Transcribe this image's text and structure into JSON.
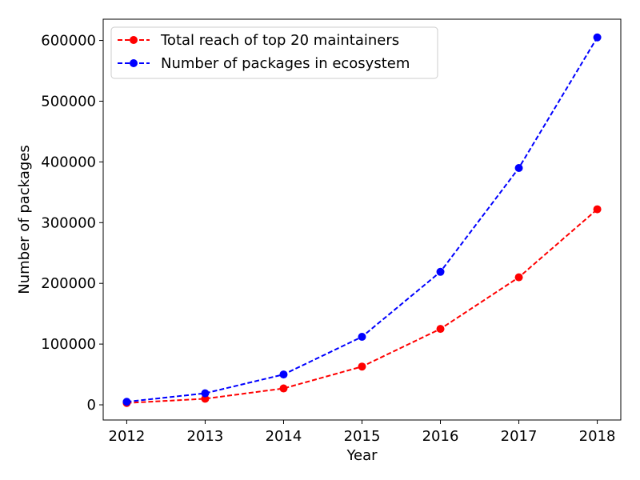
{
  "chart_data": {
    "type": "line",
    "xlabel": "Year",
    "ylabel": "Number of packages",
    "x": [
      2012,
      2013,
      2014,
      2015,
      2016,
      2017,
      2018
    ],
    "xticks": [
      "2012",
      "2013",
      "2014",
      "2015",
      "2016",
      "2017",
      "2018"
    ],
    "yticks": [
      "0",
      "100000",
      "200000",
      "300000",
      "400000",
      "500000",
      "600000"
    ],
    "xlim": [
      2011.7,
      2018.3
    ],
    "ylim": [
      -25000,
      635000
    ],
    "grid": false,
    "legend_position": "top-left",
    "series": [
      {
        "name": "Total reach of top 20 maintainers",
        "color": "#ff0000",
        "linestyle": "dashed",
        "marker": "circle",
        "values": [
          3000,
          10000,
          27000,
          63000,
          125000,
          210000,
          322000
        ]
      },
      {
        "name": "Number of packages in ecosystem",
        "color": "#0000ff",
        "linestyle": "dashed",
        "marker": "circle",
        "values": [
          5000,
          19000,
          50000,
          112000,
          219000,
          390000,
          605000
        ]
      }
    ]
  }
}
